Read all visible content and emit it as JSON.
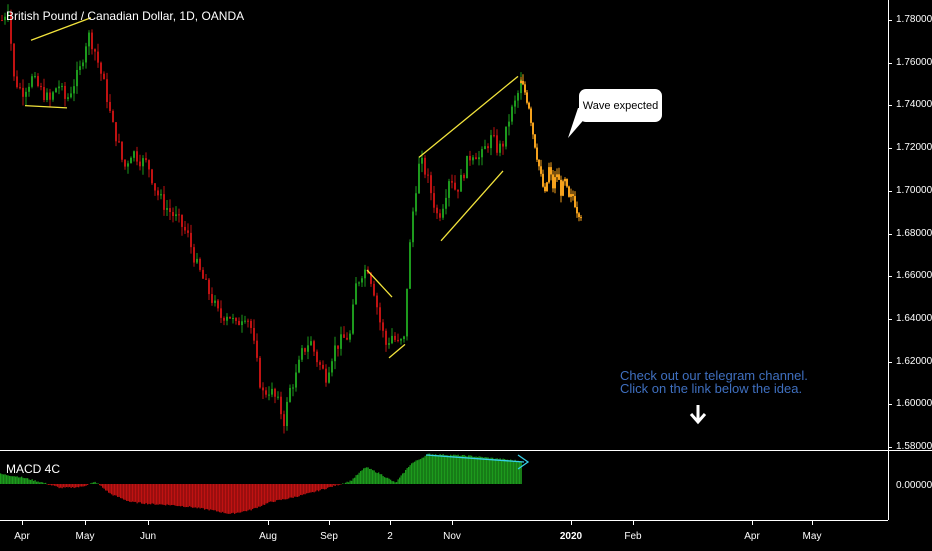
{
  "header": {
    "title": "British Pound / Canadian Dollar, 1D, OANDA"
  },
  "indicator": {
    "label": "MACD 4C",
    "zero_label": "0.00000"
  },
  "annotations": {
    "bubble_text": "Wave expected",
    "note_line1": "Check out our telegram channel.",
    "note_line2": "Click on the link below the idea."
  },
  "colors": {
    "up": "#1d9a1d",
    "down": "#c01212",
    "projection": "#f5a11c",
    "pattern": "#f2e33c",
    "divergence": "#36d0e8",
    "note": "#3f6fbf"
  },
  "chart_data": {
    "type": "candlestick",
    "symbol": "British Pound / Canadian Dollar",
    "timeframe": "1D",
    "source": "OANDA",
    "ylim": [
      1.58,
      1.79
    ],
    "y_ticks": [
      "1.78000",
      "1.76000",
      "1.74000",
      "1.72000",
      "1.70000",
      "1.68000",
      "1.66000",
      "1.64000",
      "1.62000",
      "1.60000",
      "1.58000"
    ],
    "x_ticks": [
      {
        "label": "Apr",
        "bold": false
      },
      {
        "label": "May",
        "bold": false
      },
      {
        "label": "Jun",
        "bold": false
      },
      {
        "label": "Aug",
        "bold": false
      },
      {
        "label": "Sep",
        "bold": false
      },
      {
        "label": "2",
        "bold": false
      },
      {
        "label": "Nov",
        "bold": false
      },
      {
        "label": "2020",
        "bold": true
      },
      {
        "label": "Feb",
        "bold": false
      },
      {
        "label": "Apr",
        "bold": false
      },
      {
        "label": "May",
        "bold": false
      }
    ],
    "price_path": [
      [
        0,
        1.768
      ],
      [
        8,
        1.776
      ],
      [
        14,
        1.744
      ],
      [
        22,
        1.738
      ],
      [
        32,
        1.744
      ],
      [
        42,
        1.738
      ],
      [
        50,
        1.734
      ],
      [
        58,
        1.742
      ],
      [
        66,
        1.734
      ],
      [
        74,
        1.742
      ],
      [
        80,
        1.748
      ],
      [
        88,
        1.764
      ],
      [
        94,
        1.758
      ],
      [
        100,
        1.748
      ],
      [
        106,
        1.738
      ],
      [
        112,
        1.724
      ],
      [
        118,
        1.716
      ],
      [
        124,
        1.704
      ],
      [
        132,
        1.712
      ],
      [
        140,
        1.708
      ],
      [
        148,
        1.706
      ],
      [
        156,
        1.694
      ],
      [
        164,
        1.688
      ],
      [
        172,
        1.684
      ],
      [
        180,
        1.68
      ],
      [
        188,
        1.674
      ],
      [
        196,
        1.662
      ],
      [
        204,
        1.654
      ],
      [
        212,
        1.646
      ],
      [
        220,
        1.638
      ],
      [
        228,
        1.64
      ],
      [
        236,
        1.634
      ],
      [
        244,
        1.64
      ],
      [
        250,
        1.636
      ],
      [
        256,
        1.62
      ],
      [
        262,
        1.604
      ],
      [
        270,
        1.606
      ],
      [
        278,
        1.6
      ],
      [
        284,
        1.592
      ],
      [
        290,
        1.606
      ],
      [
        296,
        1.612
      ],
      [
        302,
        1.622
      ],
      [
        310,
        1.628
      ],
      [
        318,
        1.618
      ],
      [
        326,
        1.612
      ],
      [
        334,
        1.624
      ],
      [
        342,
        1.628
      ],
      [
        350,
        1.63
      ],
      [
        356,
        1.652
      ],
      [
        362,
        1.658
      ],
      [
        368,
        1.66
      ],
      [
        374,
        1.65
      ],
      [
        380,
        1.636
      ],
      [
        386,
        1.626
      ],
      [
        392,
        1.63
      ],
      [
        398,
        1.626
      ],
      [
        404,
        1.628
      ],
      [
        408,
        1.66
      ],
      [
        414,
        1.69
      ],
      [
        420,
        1.708
      ],
      [
        426,
        1.702
      ],
      [
        432,
        1.692
      ],
      [
        438,
        1.682
      ],
      [
        444,
        1.69
      ],
      [
        450,
        1.702
      ],
      [
        456,
        1.694
      ],
      [
        462,
        1.7
      ],
      [
        468,
        1.708
      ],
      [
        474,
        1.712
      ],
      [
        480,
        1.708
      ],
      [
        486,
        1.714
      ],
      [
        492,
        1.718
      ],
      [
        498,
        1.712
      ],
      [
        504,
        1.716
      ],
      [
        510,
        1.728
      ],
      [
        516,
        1.734
      ],
      [
        521,
        1.742
      ]
    ],
    "projection_path": [
      [
        521,
        1.742
      ],
      [
        525,
        1.738
      ],
      [
        529,
        1.732
      ],
      [
        533,
        1.72
      ],
      [
        537,
        1.71
      ],
      [
        541,
        1.7
      ],
      [
        545,
        1.692
      ],
      [
        549,
        1.704
      ],
      [
        553,
        1.696
      ],
      [
        557,
        1.702
      ],
      [
        561,
        1.694
      ],
      [
        565,
        1.698
      ],
      [
        569,
        1.69
      ],
      [
        573,
        1.692
      ],
      [
        577,
        1.686
      ],
      [
        581,
        1.684
      ]
    ],
    "macd_histogram": [
      [
        0,
        1.0
      ],
      [
        20,
        0.7
      ],
      [
        40,
        0.2
      ],
      [
        60,
        -0.4
      ],
      [
        80,
        -0.3
      ],
      [
        95,
        0.2
      ],
      [
        110,
        -1.0
      ],
      [
        130,
        -1.8
      ],
      [
        150,
        -2.0
      ],
      [
        170,
        -2.1
      ],
      [
        190,
        -2.3
      ],
      [
        210,
        -2.6
      ],
      [
        230,
        -3.0
      ],
      [
        250,
        -2.6
      ],
      [
        270,
        -1.8
      ],
      [
        290,
        -1.4
      ],
      [
        310,
        -0.9
      ],
      [
        330,
        -0.3
      ],
      [
        350,
        0.3
      ],
      [
        365,
        1.7
      ],
      [
        380,
        1.0
      ],
      [
        395,
        0.1
      ],
      [
        410,
        2.0
      ],
      [
        428,
        3.0
      ],
      [
        450,
        2.9
      ],
      [
        470,
        2.8
      ],
      [
        490,
        2.6
      ],
      [
        510,
        2.4
      ],
      [
        521,
        2.3
      ]
    ],
    "drawings": [
      {
        "kind": "pattern",
        "color": "pattern",
        "points": [
          [
            31,
            1.761
          ],
          [
            91,
            1.771
          ]
        ]
      },
      {
        "kind": "pattern",
        "color": "pattern",
        "points": [
          [
            25,
            1.732
          ],
          [
            67,
            1.731
          ]
        ]
      },
      {
        "kind": "pattern",
        "color": "pattern",
        "points": [
          [
            367,
            1.659
          ],
          [
            392,
            1.647
          ]
        ]
      },
      {
        "kind": "pattern",
        "color": "pattern",
        "points": [
          [
            389,
            1.62
          ],
          [
            405,
            1.626
          ]
        ]
      },
      {
        "kind": "pattern",
        "color": "pattern",
        "points": [
          [
            419,
            1.709
          ],
          [
            518,
            1.745
          ]
        ]
      },
      {
        "kind": "pattern",
        "color": "pattern",
        "points": [
          [
            441,
            1.672
          ],
          [
            503,
            1.703
          ]
        ]
      }
    ]
  }
}
